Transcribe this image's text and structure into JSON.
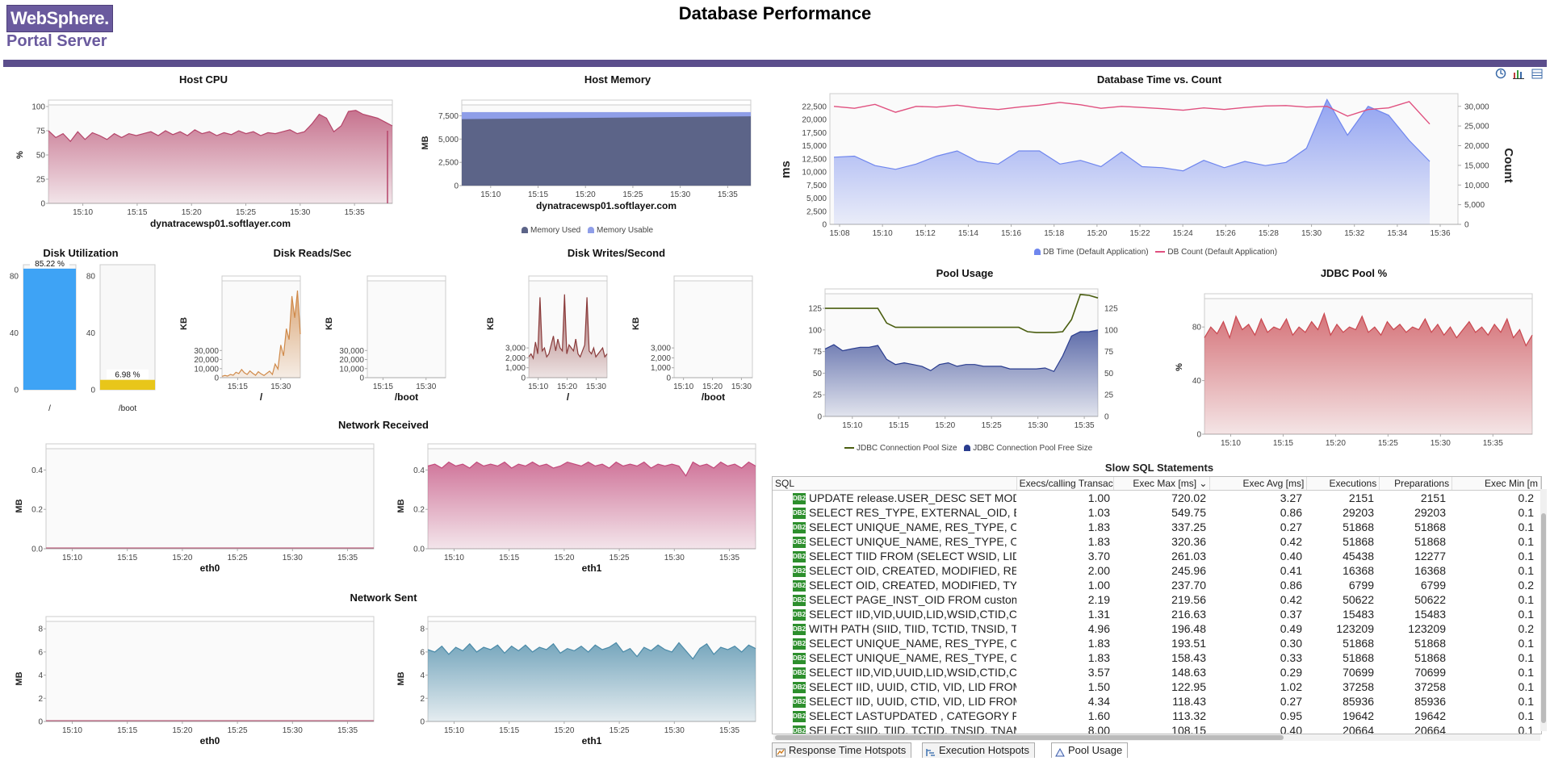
{
  "brand": {
    "logo": "WebSphere.",
    "product": "Portal Server"
  },
  "page_title": "Database Performance",
  "toolbar_icons": [
    "settings-icon",
    "chart-icon",
    "table-icon"
  ],
  "host_cpu": {
    "title": "Host CPU",
    "ylabel": "%",
    "host": "dynatracewsp01.softlayer.com",
    "color": "#b5456a",
    "chart_data": {
      "type": "area",
      "ylim": [
        0,
        100
      ],
      "yticks": [
        "0",
        "25",
        "50",
        "75",
        "100"
      ],
      "xticks": [
        "15:10",
        "15:15",
        "15:20",
        "15:25",
        "15:30",
        "15:35"
      ],
      "values": [
        75,
        68,
        72,
        64,
        74,
        66,
        73,
        70,
        66,
        72,
        68,
        72,
        70,
        72,
        74,
        70,
        75,
        71,
        74,
        70,
        76,
        72,
        74,
        70,
        73,
        71,
        75,
        72,
        74,
        70,
        73,
        72,
        74,
        76,
        72,
        74,
        82,
        92,
        88,
        74,
        80,
        95,
        96,
        92,
        90,
        88,
        84,
        80
      ]
    }
  },
  "host_memory": {
    "title": "Host Memory",
    "ylabel": "MB",
    "host": "dynatracewsp01.softlayer.com",
    "chart_data": {
      "type": "area",
      "ylim": [
        0,
        8500
      ],
      "yticks": [
        "0",
        "2,500",
        "5,000",
        "7,500"
      ],
      "xticks": [
        "15:10",
        "15:15",
        "15:20",
        "15:25",
        "15:30",
        "15:35"
      ],
      "series": [
        {
          "name": "Memory Used",
          "start": 7150,
          "end": 7450,
          "color": "#5c6488"
        },
        {
          "name": "Memory Usable",
          "start": 7900,
          "end": 7900,
          "color": "#8f9ee8"
        }
      ]
    }
  },
  "disk_util": {
    "title": "Disk Utilization",
    "bars": [
      {
        "label": "/",
        "value_label": "85.22 %",
        "value": 85.22,
        "color": "#3ea3f5"
      },
      {
        "label": "/boot",
        "value_label": "6.98 %",
        "value": 6.98,
        "color": "#e8c61a"
      }
    ],
    "yticks": [
      "0",
      "40",
      "80"
    ]
  },
  "disk_reads": {
    "title": "Disk Reads/Sec",
    "ylabel": "KB",
    "panels": [
      {
        "label": "/",
        "yticks": [
          "0",
          "10,000",
          "20,000",
          "30,000"
        ],
        "xticks": [
          "15:15",
          "15:30"
        ],
        "ymax": 35000,
        "values": [
          500,
          800,
          600,
          1200,
          900,
          2000,
          1500,
          3000,
          1800,
          1200,
          2500,
          1600,
          900,
          2200,
          1400,
          800,
          1600,
          2400,
          1200,
          5000,
          3200,
          12000,
          8000,
          18000,
          14000,
          30000,
          22000,
          32000,
          16000
        ]
      },
      {
        "label": "/boot",
        "yticks": [
          "0",
          "10,000",
          "20,000",
          "30,000"
        ],
        "xticks": [
          "15:15",
          "15:30"
        ],
        "ymax": 35000,
        "values": []
      }
    ]
  },
  "disk_writes": {
    "title": "Disk Writes/Second",
    "ylabel": "KB",
    "panels": [
      {
        "label": "/",
        "yticks": [
          "0",
          "1,000",
          "2,000",
          "3,000"
        ],
        "xticks": [
          "15:10",
          "15:20",
          "15:30"
        ],
        "ymax": 3200,
        "values": [
          700,
          800,
          650,
          1200,
          800,
          2700,
          900,
          1000,
          700,
          800,
          1100,
          1400,
          900,
          1300,
          1000,
          900,
          2800,
          800,
          1100,
          1000,
          900,
          1300,
          800,
          700,
          900,
          1100,
          2700,
          900,
          800,
          1000,
          700,
          800,
          900,
          1000,
          700,
          800
        ]
      },
      {
        "label": "/boot",
        "yticks": [
          "0",
          "1,000",
          "2,000",
          "3,000"
        ],
        "xticks": [
          "15:10",
          "15:20",
          "15:30"
        ],
        "ymax": 3200,
        "values": []
      }
    ]
  },
  "db_time_count": {
    "title": "Database Time vs. Count",
    "ylabel_left": "ms",
    "ylabel_right": "Count",
    "chart_data": {
      "type": "area",
      "yticks_left": [
        "0",
        "2,500",
        "5,000",
        "7,500",
        "10,000",
        "12,500",
        "15,000",
        "17,500",
        "20,000",
        "22,500"
      ],
      "yticks_right": [
        "0",
        "5,000",
        "10,000",
        "15,000",
        "20,000",
        "25,000",
        "30,000"
      ],
      "xticks": [
        "15:08",
        "15:10",
        "15:12",
        "15:14",
        "15:16",
        "15:18",
        "15:20",
        "15:22",
        "15:24",
        "15:26",
        "15:28",
        "15:30",
        "15:32",
        "15:34",
        "15:36"
      ],
      "ylim_left": [
        0,
        24000
      ],
      "ylim_right": [
        0,
        32000
      ],
      "series": [
        {
          "name": "DB Time (Default Application)",
          "color": "#6f86ee",
          "values": [
            12800,
            13000,
            11200,
            10500,
            11500,
            13000,
            14000,
            12000,
            11500,
            14000,
            14000,
            11500,
            12200,
            11000,
            13800,
            11000,
            10800,
            10200,
            12200,
            10800,
            12000,
            11200,
            11800,
            14500,
            23800,
            17000,
            22500,
            20800,
            16000,
            12000
          ]
        },
        {
          "name": "DB Count (Default Application)",
          "color": "#e0507f",
          "values": [
            30000,
            29500,
            30500,
            28500,
            30000,
            29800,
            30300,
            29600,
            29200,
            29800,
            30300,
            31000,
            30400,
            29500,
            30000,
            29700,
            29400,
            29000,
            29600,
            29200,
            29700,
            30100,
            30200,
            29800,
            30000,
            27500,
            29200,
            29600,
            31200,
            25500
          ]
        }
      ]
    }
  },
  "pool_usage": {
    "title": "Pool Usage",
    "chart_data": {
      "type": "area",
      "ylim": [
        0,
        140
      ],
      "yticks": [
        "0",
        "25",
        "50",
        "75",
        "100",
        "125"
      ],
      "xticks": [
        "15:10",
        "15:15",
        "15:20",
        "15:25",
        "15:30",
        "15:35"
      ],
      "series": [
        {
          "name": "JDBC Connection Pool Size",
          "color": "#4a5e10",
          "values": [
            125,
            125,
            125,
            125,
            125,
            125,
            125,
            108,
            103,
            103,
            103,
            103,
            103,
            103,
            103,
            103,
            103,
            103,
            103,
            103,
            103,
            103,
            103,
            98,
            97,
            97,
            97,
            98,
            112,
            141,
            140,
            137
          ]
        },
        {
          "name": "JDBC Connection Pool Free Size",
          "color": "#2a3d8f",
          "values": [
            78,
            83,
            76,
            78,
            80,
            80,
            82,
            66,
            60,
            62,
            60,
            58,
            53,
            60,
            62,
            58,
            60,
            60,
            58,
            58,
            58,
            55,
            55,
            55,
            55,
            56,
            52,
            70,
            93,
            98,
            98,
            100
          ]
        }
      ]
    }
  },
  "jdbc_pool": {
    "title": "JDBC Pool %",
    "ylabel": "%",
    "chart_data": {
      "type": "area",
      "ylim": [
        0,
        100
      ],
      "yticks": [
        "0",
        "40",
        "80"
      ],
      "xticks": [
        "15:10",
        "15:15",
        "15:20",
        "15:25",
        "15:30",
        "15:35"
      ],
      "values": [
        72,
        80,
        75,
        84,
        72,
        88,
        78,
        82,
        74,
        86,
        76,
        80,
        78,
        86,
        74,
        80,
        76,
        84,
        78,
        90,
        74,
        82,
        76,
        80,
        78,
        88,
        76,
        80,
        74,
        84,
        78,
        82,
        76,
        80,
        78,
        86,
        76,
        82,
        74,
        80,
        72,
        78,
        84,
        76,
        80,
        74,
        82,
        76,
        86,
        72,
        78,
        66,
        74
      ]
    }
  },
  "network_received": {
    "title": "Network Received",
    "ylabel": "MB",
    "panels": [
      {
        "label": "eth0",
        "yticks": [
          "0.0",
          "0.2",
          "0.4"
        ],
        "ymax": 0.5,
        "xticks": [
          "15:10",
          "15:15",
          "15:20",
          "15:25",
          "15:30",
          "15:35"
        ],
        "values": [],
        "color": "#b5456a"
      },
      {
        "label": "eth1",
        "yticks": [
          "0.0",
          "0.2",
          "0.4"
        ],
        "ymax": 0.5,
        "xticks": [
          "15:10",
          "15:15",
          "15:20",
          "15:25",
          "15:30",
          "15:35"
        ],
        "color": "#c24a7b",
        "values": [
          0.42,
          0.43,
          0.41,
          0.44,
          0.42,
          0.43,
          0.41,
          0.44,
          0.42,
          0.43,
          0.42,
          0.44,
          0.41,
          0.43,
          0.42,
          0.44,
          0.42,
          0.43,
          0.41,
          0.42,
          0.44,
          0.43,
          0.42,
          0.44,
          0.42,
          0.43,
          0.41,
          0.44,
          0.42,
          0.43,
          0.42,
          0.44,
          0.41,
          0.43,
          0.42,
          0.43,
          0.42,
          0.37,
          0.44,
          0.42,
          0.43,
          0.41,
          0.44,
          0.42,
          0.43,
          0.41,
          0.44,
          0.42
        ]
      }
    ]
  },
  "network_sent": {
    "title": "Network Sent",
    "ylabel": "MB",
    "panels": [
      {
        "label": "eth0",
        "yticks": [
          "0",
          "2",
          "4",
          "6",
          "8"
        ],
        "ymax": 8.5,
        "xticks": [
          "15:10",
          "15:15",
          "15:20",
          "15:25",
          "15:30",
          "15:35"
        ],
        "values": [],
        "color": "#b5456a"
      },
      {
        "label": "eth1",
        "yticks": [
          "0",
          "2",
          "4",
          "6",
          "8"
        ],
        "ymax": 8.5,
        "xticks": [
          "15:10",
          "15:15",
          "15:20",
          "15:25",
          "15:30",
          "15:35"
        ],
        "color": "#4a8aa8",
        "values": [
          6.2,
          6.0,
          6.5,
          5.8,
          6.4,
          6.1,
          6.7,
          6.0,
          6.4,
          6.2,
          6.6,
          5.9,
          6.5,
          6.1,
          6.6,
          6.0,
          6.4,
          6.2,
          6.7,
          5.9,
          6.3,
          6.1,
          6.5,
          6.0,
          6.6,
          6.2,
          6.4,
          6.8,
          6.0,
          6.3,
          5.6,
          6.4,
          6.1,
          6.6,
          6.2,
          6.0,
          6.8,
          6.1,
          5.4,
          6.3,
          6.7,
          5.8,
          6.4,
          6.2,
          6.5,
          6.0,
          6.6,
          6.3
        ]
      }
    ]
  },
  "slow_sql": {
    "title": "Slow SQL Statements",
    "columns": [
      "SQL",
      "Execs/calling Transact",
      "Exec Max [ms] ⌄",
      "Exec Avg [ms]",
      "Executions",
      "Preparations",
      "Exec Min [m"
    ],
    "rows": [
      [
        "UPDATE release.USER_DESC SET MODIF",
        "1.00",
        "720.02",
        "3.27",
        "2151",
        "2151",
        "0.2"
      ],
      [
        "SELECT RES_TYPE, EXTERNAL_OID, EXT",
        "1.03",
        "549.75",
        "0.86",
        "29203",
        "29203",
        "0.1"
      ],
      [
        "SELECT UNIQUE_NAME, RES_TYPE, OID",
        "1.83",
        "337.25",
        "0.27",
        "51868",
        "51868",
        "0.1"
      ],
      [
        "SELECT UNIQUE_NAME, RES_TYPE, OID",
        "1.83",
        "320.36",
        "0.42",
        "51868",
        "51868",
        "0.1"
      ],
      [
        "SELECT TIID FROM (SELECT WSID, LID,",
        "3.70",
        "261.03",
        "0.40",
        "45438",
        "12277",
        "0.1"
      ],
      [
        "SELECT OID, CREATED, MODIFIED, RES_",
        "2.00",
        "245.96",
        "0.41",
        "16368",
        "16368",
        "0.1"
      ],
      [
        "SELECT OID, CREATED, MODIFIED, TYPE",
        "1.00",
        "237.70",
        "0.86",
        "6799",
        "6799",
        "0.2"
      ],
      [
        "SELECT PAGE_INST_OID FROM customiz",
        "2.19",
        "219.56",
        "0.42",
        "50622",
        "50622",
        "0.1"
      ],
      [
        "SELECT IID,VID,UUID,LID,WSID,CTID,CD",
        "1.31",
        "216.63",
        "0.37",
        "15483",
        "15483",
        "0.1"
      ],
      [
        "WITH PATH (SIID, TIID, TCTID, TNSID, TN",
        "4.96",
        "196.48",
        "0.49",
        "123209",
        "123209",
        "0.2"
      ],
      [
        "SELECT UNIQUE_NAME, RES_TYPE, OID",
        "1.83",
        "193.51",
        "0.30",
        "51868",
        "51868",
        "0.1"
      ],
      [
        "SELECT UNIQUE_NAME, RES_TYPE, OID",
        "1.83",
        "158.43",
        "0.33",
        "51868",
        "51868",
        "0.1"
      ],
      [
        "SELECT IID,VID,UUID,LID,WSID,CTID,CD",
        "3.57",
        "148.63",
        "0.29",
        "70699",
        "70699",
        "0.1"
      ],
      [
        "SELECT IID, UUID, CTID, VID, LID FROM",
        "1.50",
        "122.95",
        "1.02",
        "37258",
        "37258",
        "0.1"
      ],
      [
        "SELECT IID, UUID, CTID, VID, LID FROM",
        "4.34",
        "118.43",
        "0.27",
        "85936",
        "85936",
        "0.1"
      ],
      [
        "SELECT LASTUPDATED , CATEGORY FR",
        "1.60",
        "113.32",
        "0.95",
        "19642",
        "19642",
        "0.1"
      ],
      [
        "SELECT SIID, TIID, TCTID, TNSID, TNAMI",
        "8.00",
        "108.15",
        "0.40",
        "20664",
        "20664",
        "0.1"
      ]
    ],
    "badge": "DB2"
  },
  "tabs": [
    {
      "label": "Response Time Hotspots",
      "icon": "hotspot-icon"
    },
    {
      "label": "Execution Hotspots",
      "icon": "execution-icon"
    },
    {
      "label": "Pool Usage",
      "icon": "pool-icon"
    }
  ]
}
